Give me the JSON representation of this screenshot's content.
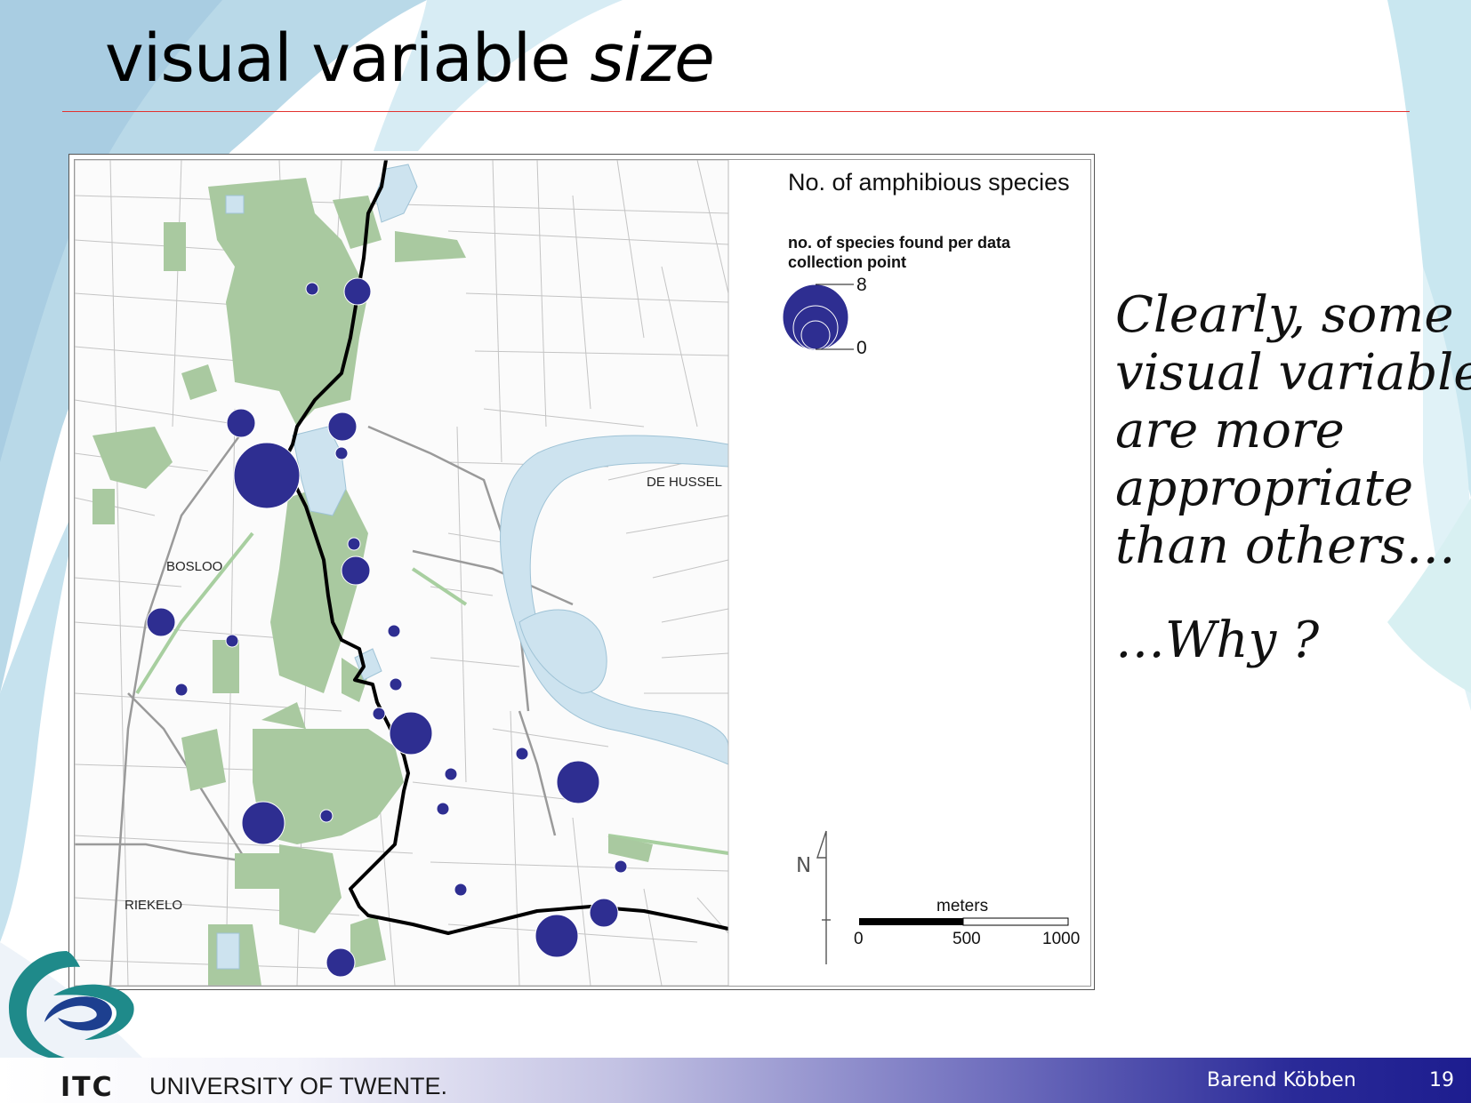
{
  "slide": {
    "title_plain": "visual variable ",
    "title_italic": "size",
    "side_text_lines": [
      "Clearly, some",
      "visual variables",
      "are more",
      "appropriate",
      "than others…"
    ],
    "side_question": "…Why ?",
    "footer": {
      "logo_text": "ITC",
      "university": "UNIVERSITY OF TWENTE.",
      "author": "Barend Köbben",
      "page_number": "19"
    }
  },
  "map": {
    "place_labels": [
      "BOSLOO",
      "DE HUSSEL",
      "RIEKELO"
    ],
    "legend": {
      "title": "No. of amphibious species",
      "subtitle": "no. of species found per data collection point",
      "max_label": "8",
      "min_label": "0"
    },
    "north_label": "N",
    "scalebar": {
      "unit": "meters",
      "ticks": [
        "0",
        "500",
        "1000"
      ]
    },
    "colors": {
      "symbol": "#2e2e91",
      "water": "#cde3ef",
      "forest": "#a9c9a0",
      "border": "#000000",
      "title_rule": "#e3322f"
    },
    "symbol_value_range": [
      0,
      8
    ]
  }
}
